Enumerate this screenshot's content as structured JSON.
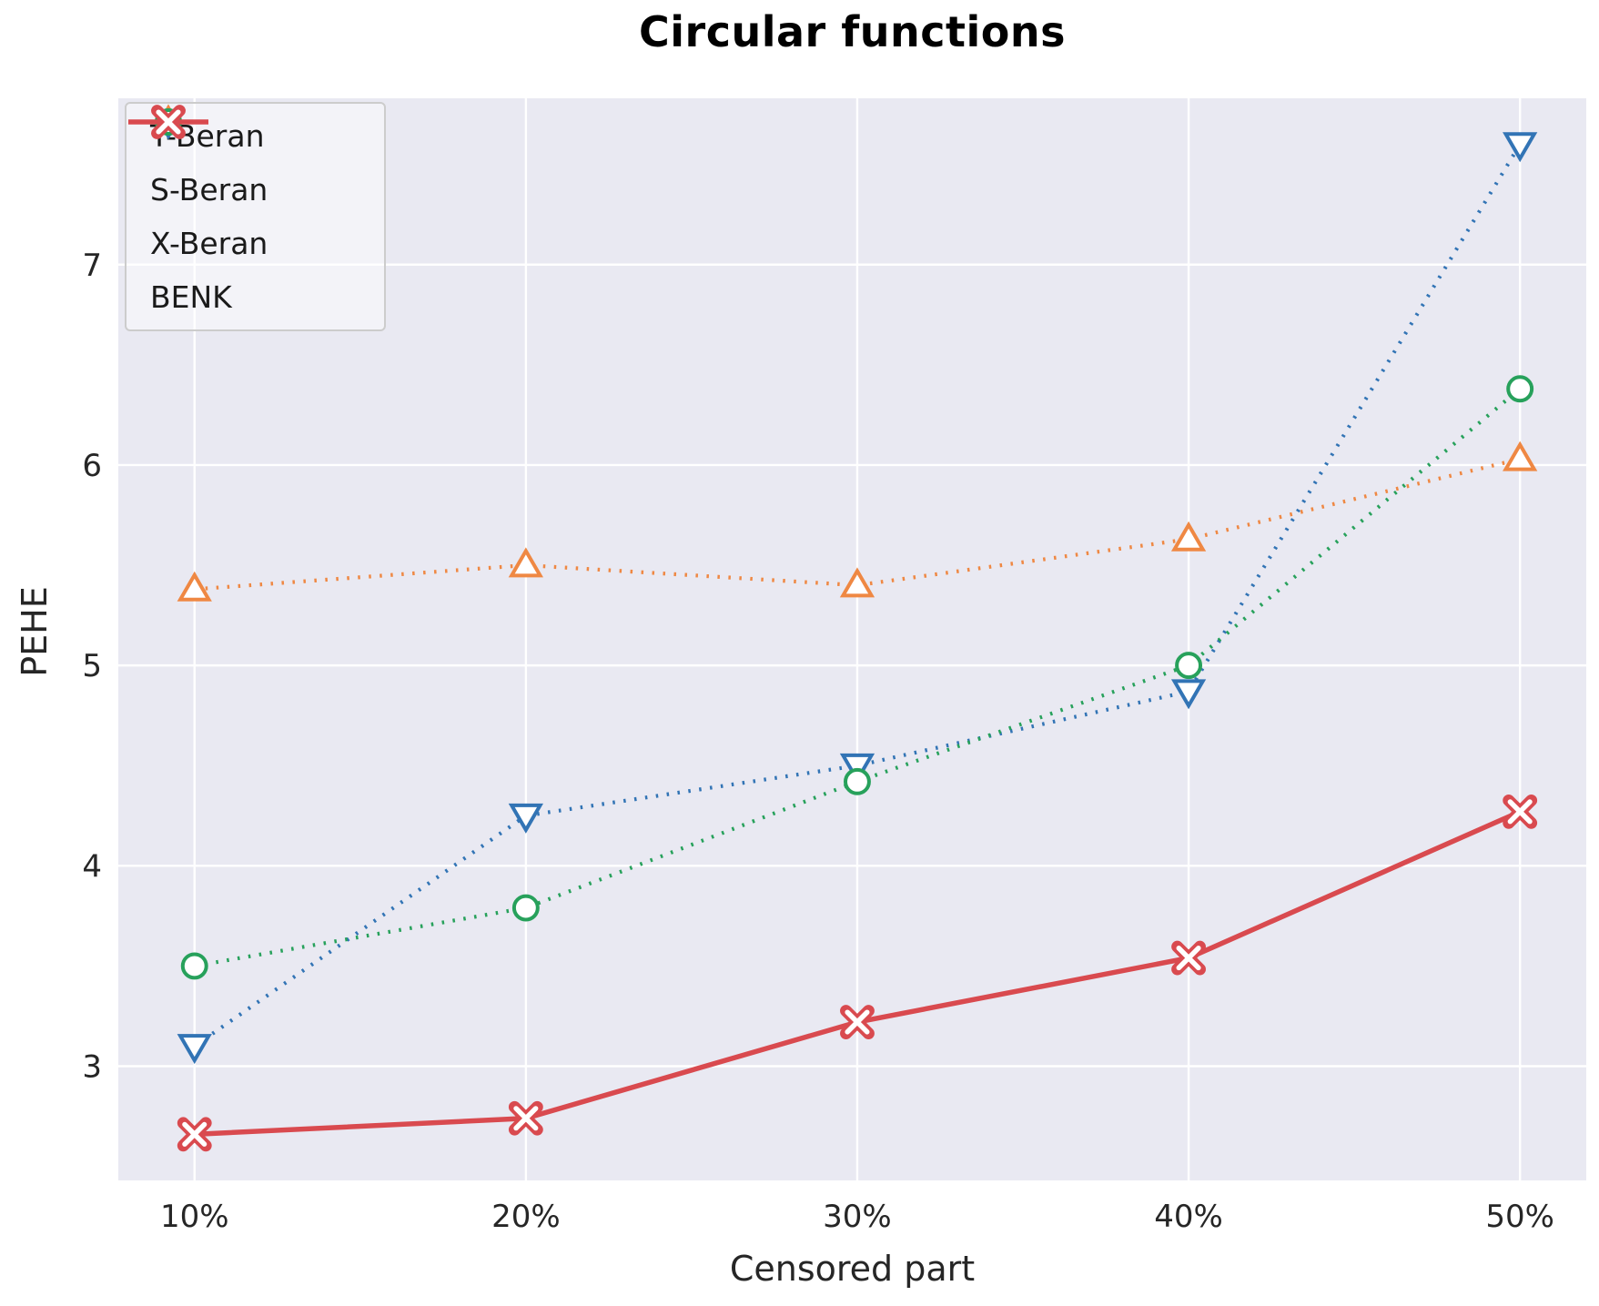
{
  "title": "Circular functions",
  "chart_data": {
    "type": "line",
    "title": "Circular functions",
    "xlabel": "Censored part",
    "ylabel": "PEHE",
    "categories": [
      "10%",
      "20%",
      "30%",
      "40%",
      "50%"
    ],
    "x_values": [
      10,
      20,
      30,
      40,
      50
    ],
    "yticks": [
      3,
      4,
      5,
      6,
      7
    ],
    "ylim": [
      2.43,
      7.83
    ],
    "xlim": [
      7.7,
      52.0
    ],
    "grid": true,
    "legend_position": "upper left",
    "plot_background": "#E9E9F2",
    "gridline_color": "#FFFFFF",
    "series": [
      {
        "name": "T-Beran",
        "color": "#3274B5",
        "marker": "triangle-down",
        "line_style": "dotted",
        "values": [
          3.1,
          4.25,
          4.5,
          4.87,
          7.6
        ]
      },
      {
        "name": "S-Beran",
        "color": "#EF8843",
        "marker": "triangle-up",
        "line_style": "dotted",
        "values": [
          5.38,
          5.5,
          5.4,
          5.63,
          6.03
        ]
      },
      {
        "name": "X-Beran",
        "color": "#27A15B",
        "marker": "circle",
        "line_style": "dotted",
        "values": [
          3.5,
          3.79,
          4.42,
          5.0,
          6.38
        ]
      },
      {
        "name": "BENK",
        "color": "#D94A4F",
        "marker": "x",
        "line_style": "solid",
        "values": [
          2.66,
          2.74,
          3.22,
          3.54,
          4.27
        ]
      }
    ]
  }
}
